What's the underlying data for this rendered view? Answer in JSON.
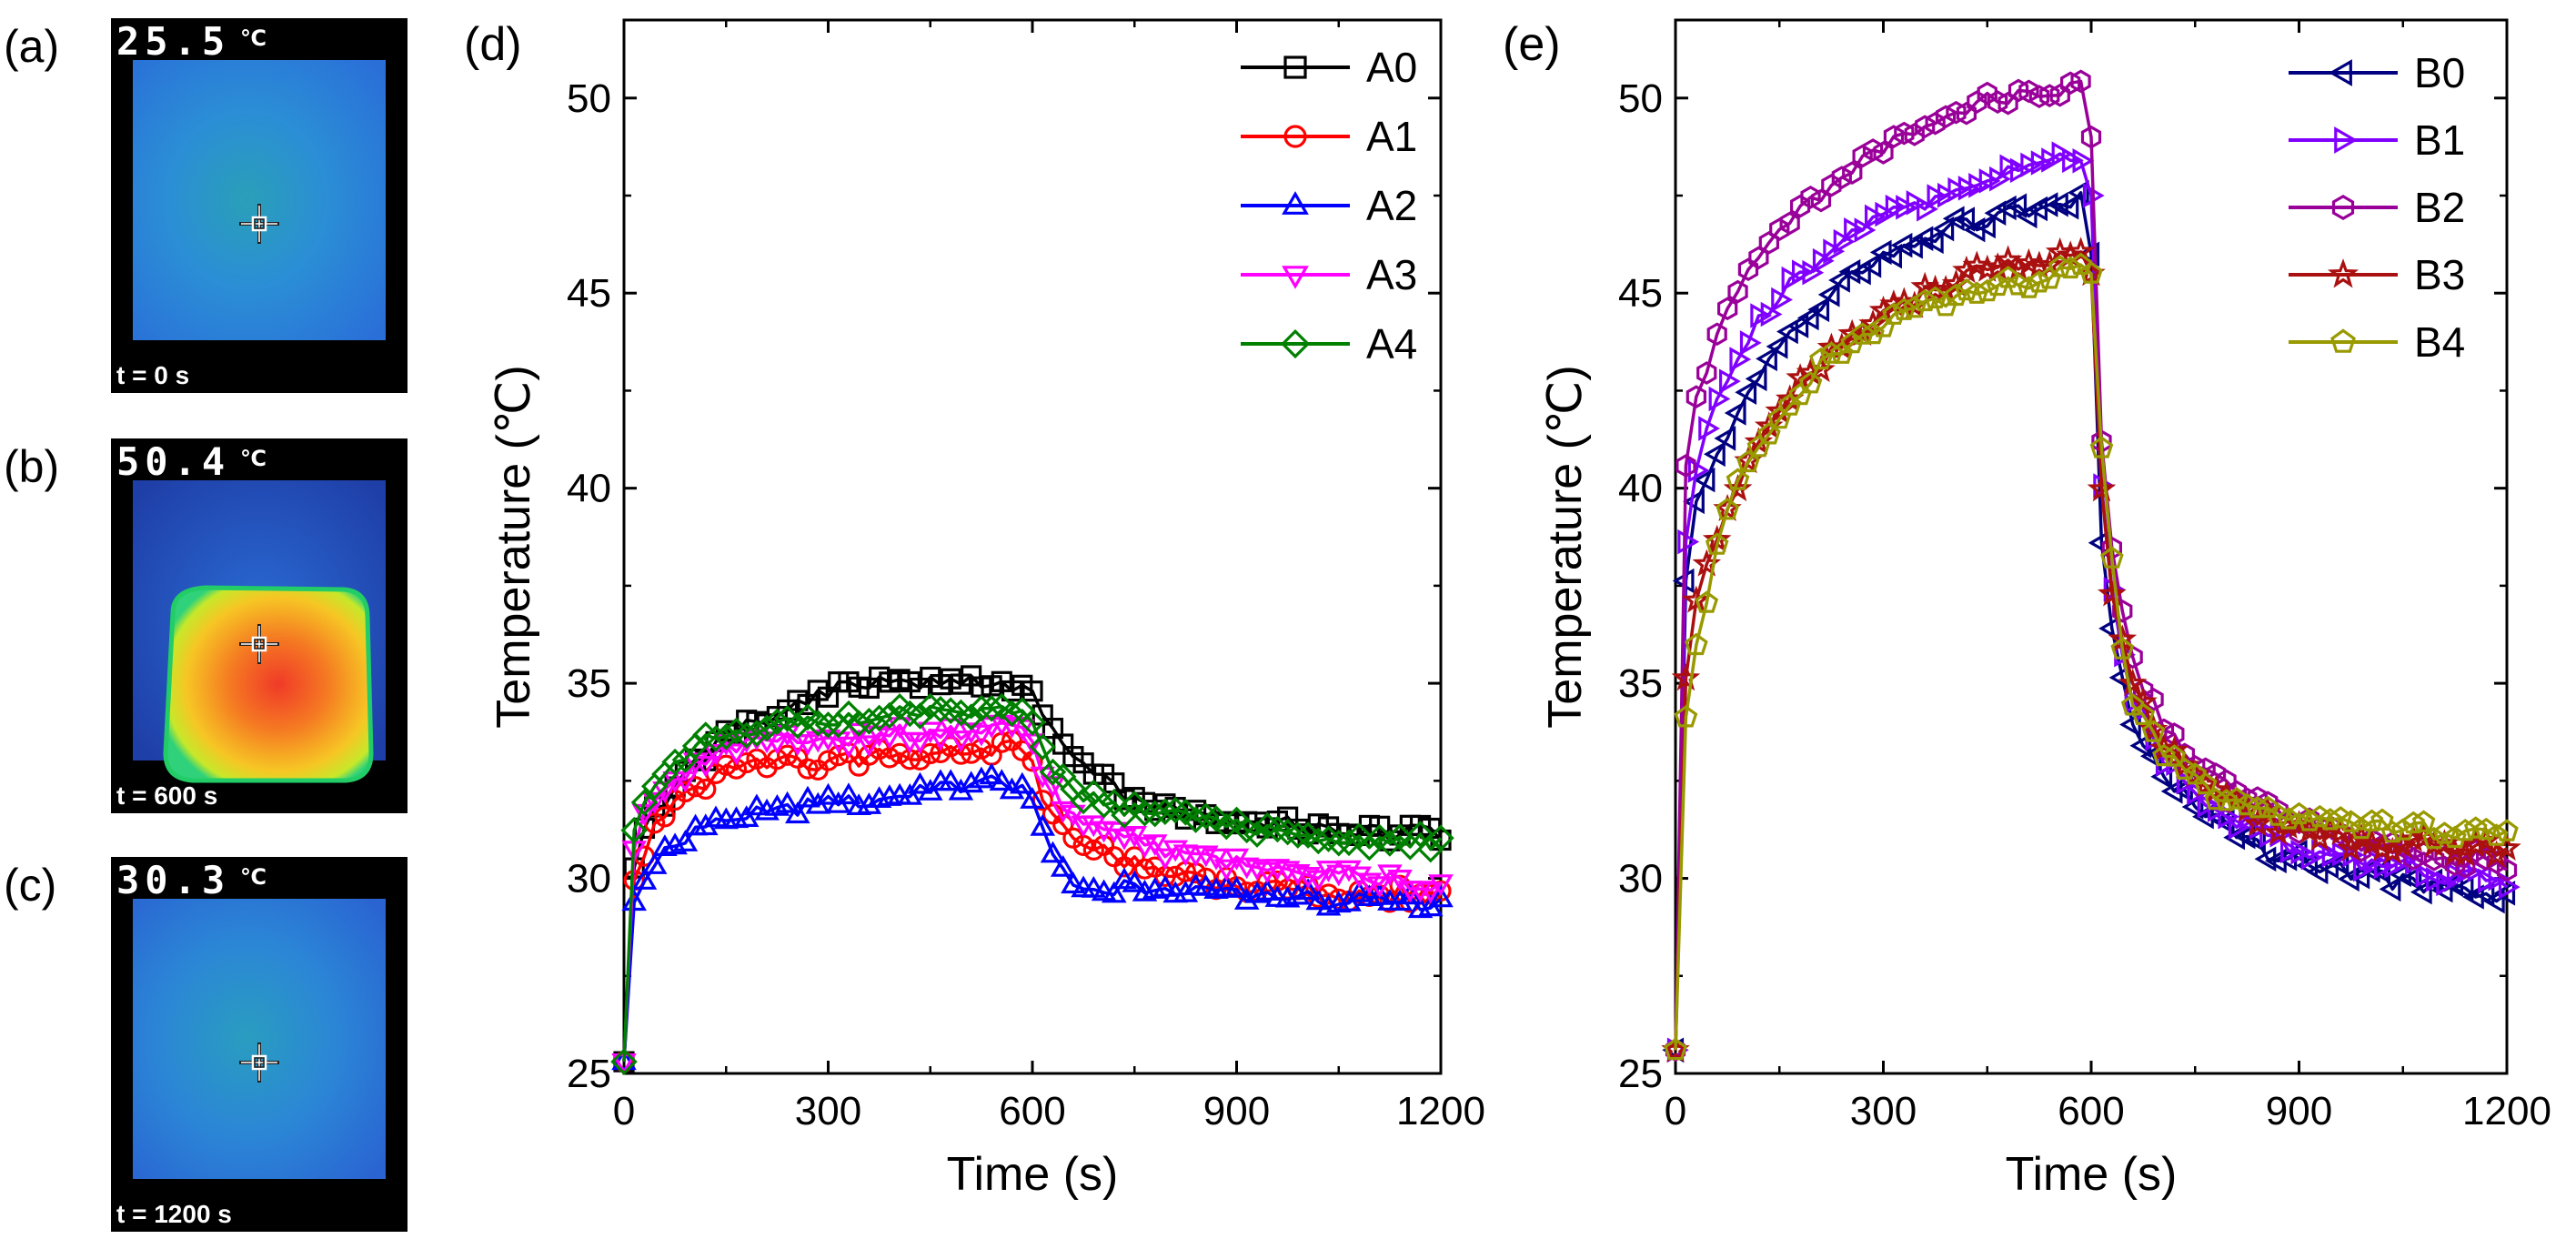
{
  "thermal_panels": [
    {
      "letter": "(a)",
      "temp": "25.5",
      "unit": "℃",
      "time": "t = 0 s",
      "palette": "cool"
    },
    {
      "letter": "(b)",
      "temp": "50.4",
      "unit": "℃",
      "time": "t = 600 s",
      "palette": "hot"
    },
    {
      "letter": "(c)",
      "temp": "30.3",
      "unit": "℃",
      "time": "t = 1200 s",
      "palette": "cool2"
    }
  ],
  "chart_data": [
    {
      "type": "line",
      "panel": "(d)",
      "xlabel": "Time (s)",
      "ylabel": "Temperature (℃)",
      "xlim": [
        0,
        1200
      ],
      "ylim": [
        25,
        52
      ],
      "xticks": [
        0,
        300,
        600,
        900,
        1200
      ],
      "yticks": [
        25,
        30,
        35,
        40,
        45,
        50
      ],
      "legend_position": "top-right",
      "series": [
        {
          "name": "A0",
          "color": "#000000",
          "marker": "square",
          "key": [
            [
              0,
              25.3
            ],
            [
              10,
              30.0
            ],
            [
              40,
              31.6
            ],
            [
              100,
              32.8
            ],
            [
              150,
              33.6
            ],
            [
              200,
              34.0
            ],
            [
              250,
              34.3
            ],
            [
              300,
              34.8
            ],
            [
              350,
              34.9
            ],
            [
              420,
              35.1
            ],
            [
              500,
              35.0
            ],
            [
              590,
              35.0
            ],
            [
              600,
              34.8
            ],
            [
              620,
              34.0
            ],
            [
              660,
              33.0
            ],
            [
              720,
              32.3
            ],
            [
              800,
              31.8
            ],
            [
              900,
              31.5
            ],
            [
              1000,
              31.3
            ],
            [
              1100,
              31.2
            ],
            [
              1200,
              31.1
            ]
          ]
        },
        {
          "name": "A1",
          "color": "#ff0000",
          "marker": "circle",
          "key": [
            [
              0,
              25.3
            ],
            [
              10,
              29.7
            ],
            [
              40,
              31.2
            ],
            [
              100,
              32.3
            ],
            [
              150,
              32.7
            ],
            [
              200,
              32.9
            ],
            [
              300,
              33.0
            ],
            [
              400,
              33.2
            ],
            [
              500,
              33.3
            ],
            [
              590,
              33.4
            ],
            [
              600,
              33.0
            ],
            [
              620,
              31.8
            ],
            [
              660,
              31.0
            ],
            [
              720,
              30.5
            ],
            [
              800,
              30.1
            ],
            [
              900,
              29.8
            ],
            [
              1000,
              29.7
            ],
            [
              1100,
              29.6
            ],
            [
              1200,
              29.6
            ]
          ]
        },
        {
          "name": "A2",
          "color": "#0000ff",
          "marker": "triangle-up",
          "key": [
            [
              0,
              25.3
            ],
            [
              10,
              29.2
            ],
            [
              40,
              30.3
            ],
            [
              100,
              31.1
            ],
            [
              150,
              31.5
            ],
            [
              200,
              31.7
            ],
            [
              300,
              31.9
            ],
            [
              400,
              32.2
            ],
            [
              500,
              32.3
            ],
            [
              560,
              32.5
            ],
            [
              590,
              32.3
            ],
            [
              600,
              32.0
            ],
            [
              620,
              30.8
            ],
            [
              660,
              30.0
            ],
            [
              720,
              29.8
            ],
            [
              800,
              29.7
            ],
            [
              900,
              29.6
            ],
            [
              1000,
              29.5
            ],
            [
              1100,
              29.4
            ],
            [
              1200,
              29.3
            ]
          ]
        },
        {
          "name": "A3",
          "color": "#ff00ff",
          "marker": "triangle-down",
          "key": [
            [
              0,
              25.3
            ],
            [
              10,
              30.5
            ],
            [
              40,
              32.0
            ],
            [
              100,
              32.9
            ],
            [
              150,
              33.3
            ],
            [
              200,
              33.5
            ],
            [
              300,
              33.6
            ],
            [
              400,
              33.7
            ],
            [
              500,
              33.8
            ],
            [
              590,
              33.9
            ],
            [
              600,
              33.5
            ],
            [
              620,
              32.4
            ],
            [
              660,
              31.6
            ],
            [
              720,
              31.1
            ],
            [
              800,
              30.7
            ],
            [
              900,
              30.4
            ],
            [
              1000,
              30.2
            ],
            [
              1100,
              30.0
            ],
            [
              1200,
              29.9
            ]
          ]
        },
        {
          "name": "A4",
          "color": "#008000",
          "marker": "diamond",
          "key": [
            [
              0,
              25.3
            ],
            [
              10,
              31.0
            ],
            [
              40,
              32.4
            ],
            [
              100,
              33.3
            ],
            [
              150,
              33.7
            ],
            [
              200,
              33.9
            ],
            [
              300,
              34.0
            ],
            [
              400,
              34.2
            ],
            [
              500,
              34.3
            ],
            [
              590,
              34.4
            ],
            [
              600,
              34.0
            ],
            [
              620,
              33.0
            ],
            [
              660,
              32.3
            ],
            [
              720,
              31.9
            ],
            [
              800,
              31.6
            ],
            [
              900,
              31.3
            ],
            [
              1000,
              31.1
            ],
            [
              1100,
              31.0
            ],
            [
              1200,
              30.9
            ]
          ]
        }
      ]
    },
    {
      "type": "line",
      "panel": "(e)",
      "xlabel": "Time (s)",
      "ylabel": "Temperature (℃)",
      "xlim": [
        0,
        1200
      ],
      "ylim": [
        25,
        52
      ],
      "xticks": [
        0,
        300,
        600,
        900,
        1200
      ],
      "yticks": [
        25,
        30,
        35,
        40,
        45,
        50
      ],
      "legend_position": "top-right",
      "series": [
        {
          "name": "B0",
          "color": "#000080",
          "marker": "triangle-left",
          "key": [
            [
              0,
              25.6
            ],
            [
              10,
              37.0
            ],
            [
              30,
              39.5
            ],
            [
              60,
              41.0
            ],
            [
              100,
              42.3
            ],
            [
              150,
              43.5
            ],
            [
              200,
              44.5
            ],
            [
              250,
              45.3
            ],
            [
              300,
              45.9
            ],
            [
              350,
              46.3
            ],
            [
              400,
              46.7
            ],
            [
              450,
              46.9
            ],
            [
              500,
              47.1
            ],
            [
              560,
              47.3
            ],
            [
              590,
              47.4
            ],
            [
              600,
              46.0
            ],
            [
              610,
              40.0
            ],
            [
              620,
              37.5
            ],
            [
              640,
              35.5
            ],
            [
              660,
              34.0
            ],
            [
              700,
              32.7
            ],
            [
              750,
              31.8
            ],
            [
              800,
              31.2
            ],
            [
              850,
              30.7
            ],
            [
              900,
              30.5
            ],
            [
              950,
              30.2
            ],
            [
              1000,
              30.0
            ],
            [
              1100,
              29.8
            ],
            [
              1200,
              29.6
            ]
          ]
        },
        {
          "name": "B1",
          "color": "#8000ff",
          "marker": "triangle-right",
          "key": [
            [
              0,
              25.6
            ],
            [
              10,
              38.0
            ],
            [
              30,
              40.5
            ],
            [
              60,
              42.3
            ],
            [
              100,
              43.8
            ],
            [
              150,
              45.0
            ],
            [
              200,
              45.8
            ],
            [
              250,
              46.4
            ],
            [
              300,
              46.9
            ],
            [
              350,
              47.3
            ],
            [
              400,
              47.6
            ],
            [
              450,
              47.9
            ],
            [
              500,
              48.1
            ],
            [
              560,
              48.4
            ],
            [
              590,
              48.5
            ],
            [
              600,
              47.5
            ],
            [
              610,
              42.0
            ],
            [
              620,
              38.5
            ],
            [
              640,
              36.0
            ],
            [
              660,
              34.7
            ],
            [
              700,
              33.2
            ],
            [
              750,
              32.2
            ],
            [
              800,
              31.6
            ],
            [
              850,
              31.1
            ],
            [
              900,
              30.8
            ],
            [
              950,
              30.6
            ],
            [
              1000,
              30.4
            ],
            [
              1100,
              30.1
            ],
            [
              1200,
              30.0
            ]
          ]
        },
        {
          "name": "B2",
          "color": "#990099",
          "marker": "hexagon",
          "key": [
            [
              0,
              25.6
            ],
            [
              10,
              40.0
            ],
            [
              30,
              42.3
            ],
            [
              60,
              44.0
            ],
            [
              100,
              45.4
            ],
            [
              150,
              46.5
            ],
            [
              200,
              47.4
            ],
            [
              250,
              48.2
            ],
            [
              300,
              48.8
            ],
            [
              350,
              49.3
            ],
            [
              400,
              49.6
            ],
            [
              450,
              49.9
            ],
            [
              500,
              50.1
            ],
            [
              560,
              50.2
            ],
            [
              590,
              50.3
            ],
            [
              600,
              49.0
            ],
            [
              610,
              43.0
            ],
            [
              620,
              39.5
            ],
            [
              640,
              37.0
            ],
            [
              660,
              35.5
            ],
            [
              700,
              34.0
            ],
            [
              750,
              33.0
            ],
            [
              800,
              32.3
            ],
            [
              850,
              31.8
            ],
            [
              900,
              31.4
            ],
            [
              950,
              31.1
            ],
            [
              1000,
              30.9
            ],
            [
              1100,
              30.6
            ],
            [
              1200,
              30.4
            ]
          ]
        },
        {
          "name": "B3",
          "color": "#aa1010",
          "marker": "star",
          "key": [
            [
              0,
              25.6
            ],
            [
              10,
              34.5
            ],
            [
              30,
              37.0
            ],
            [
              60,
              38.8
            ],
            [
              100,
              40.5
            ],
            [
              150,
              42.0
            ],
            [
              200,
              43.0
            ],
            [
              250,
              43.8
            ],
            [
              300,
              44.4
            ],
            [
              350,
              44.9
            ],
            [
              400,
              45.3
            ],
            [
              450,
              45.6
            ],
            [
              500,
              45.8
            ],
            [
              560,
              46.0
            ],
            [
              590,
              46.1
            ],
            [
              600,
              45.5
            ],
            [
              610,
              41.0
            ],
            [
              620,
              38.5
            ],
            [
              640,
              36.5
            ],
            [
              660,
              35.0
            ],
            [
              700,
              33.5
            ],
            [
              750,
              32.5
            ],
            [
              800,
              31.9
            ],
            [
              850,
              31.5
            ],
            [
              900,
              31.2
            ],
            [
              950,
              31.0
            ],
            [
              1000,
              30.9
            ],
            [
              1100,
              30.8
            ],
            [
              1200,
              30.8
            ]
          ]
        },
        {
          "name": "B4",
          "color": "#999900",
          "marker": "pentagon",
          "key": [
            [
              0,
              25.6
            ],
            [
              10,
              33.5
            ],
            [
              30,
              36.0
            ],
            [
              60,
              38.5
            ],
            [
              100,
              40.5
            ],
            [
              150,
              42.0
            ],
            [
              200,
              43.0
            ],
            [
              250,
              43.7
            ],
            [
              300,
              44.2
            ],
            [
              350,
              44.6
            ],
            [
              400,
              44.9
            ],
            [
              450,
              45.1
            ],
            [
              500,
              45.3
            ],
            [
              560,
              45.5
            ],
            [
              590,
              45.6
            ],
            [
              600,
              45.5
            ],
            [
              610,
              42.5
            ],
            [
              620,
              39.5
            ],
            [
              640,
              36.5
            ],
            [
              660,
              34.5
            ],
            [
              700,
              33.2
            ],
            [
              750,
              32.5
            ],
            [
              800,
              32.0
            ],
            [
              850,
              31.7
            ],
            [
              900,
              31.5
            ],
            [
              950,
              31.4
            ],
            [
              1000,
              31.3
            ],
            [
              1100,
              31.2
            ],
            [
              1200,
              31.1
            ]
          ]
        }
      ]
    }
  ]
}
